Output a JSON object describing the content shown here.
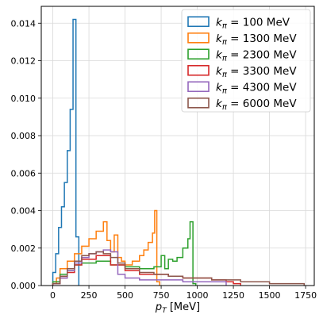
{
  "chart_data": {
    "type": "histogram-step",
    "xlabel": "p_T [MeV]",
    "ylabel": "",
    "xlim": [
      -80,
      1810
    ],
    "ylim": [
      0,
      0.0149
    ],
    "grid": true,
    "legend_position": "top-right",
    "x_ticks": [
      0,
      250,
      500,
      750,
      1000,
      1250,
      1500,
      1750
    ],
    "y_ticks": [
      0.0,
      0.002,
      0.004,
      0.006,
      0.008,
      0.01,
      0.012,
      0.014
    ],
    "y_tick_labels": [
      "0.000",
      "0.002",
      "0.004",
      "0.006",
      "0.008",
      "0.010",
      "0.012",
      "0.014"
    ],
    "series": [
      {
        "name": "k_π = 100 MeV",
        "color": "#1f77b4",
        "bins": [
          [
            0,
            20
          ],
          [
            20,
            40
          ],
          [
            40,
            60
          ],
          [
            60,
            80
          ],
          [
            80,
            100
          ],
          [
            100,
            120
          ],
          [
            120,
            140
          ],
          [
            140,
            160
          ],
          [
            160,
            180
          ]
        ],
        "values": [
          0.0007,
          0.0017,
          0.0031,
          0.0042,
          0.0055,
          0.0072,
          0.0094,
          0.0142,
          0.0026
        ]
      },
      {
        "name": "k_π = 1300 MeV",
        "color": "#ff7f0e",
        "bins": [
          [
            0,
            25
          ],
          [
            25,
            50
          ],
          [
            50,
            100
          ],
          [
            100,
            150
          ],
          [
            150,
            200
          ],
          [
            200,
            250
          ],
          [
            250,
            300
          ],
          [
            300,
            350
          ],
          [
            350,
            375
          ],
          [
            375,
            400
          ],
          [
            400,
            425
          ],
          [
            425,
            450
          ],
          [
            450,
            475
          ],
          [
            475,
            500
          ],
          [
            500,
            550
          ],
          [
            550,
            600
          ],
          [
            600,
            630
          ],
          [
            630,
            660
          ],
          [
            660,
            690
          ],
          [
            690,
            705
          ],
          [
            705,
            720
          ],
          [
            720,
            740
          ]
        ],
        "values": [
          0.0001,
          0.0004,
          0.0009,
          0.0013,
          0.0017,
          0.0021,
          0.0025,
          0.0029,
          0.0034,
          0.0024,
          0.0018,
          0.0027,
          0.0015,
          0.0013,
          0.0011,
          0.0013,
          0.0016,
          0.0019,
          0.0023,
          0.0028,
          0.004,
          0.0002
        ]
      },
      {
        "name": "k_π = 2300 MeV",
        "color": "#2ca02c",
        "bins": [
          [
            0,
            50
          ],
          [
            50,
            100
          ],
          [
            100,
            150
          ],
          [
            150,
            200
          ],
          [
            200,
            300
          ],
          [
            300,
            400
          ],
          [
            400,
            500
          ],
          [
            500,
            600
          ],
          [
            600,
            700
          ],
          [
            700,
            750
          ],
          [
            750,
            775
          ],
          [
            775,
            800
          ],
          [
            800,
            830
          ],
          [
            830,
            860
          ],
          [
            860,
            900
          ],
          [
            900,
            935
          ],
          [
            935,
            950
          ],
          [
            950,
            970
          ],
          [
            970,
            990
          ]
        ],
        "values": [
          0.0002,
          0.0006,
          0.0008,
          0.0011,
          0.0012,
          0.0013,
          0.0011,
          0.001,
          0.0009,
          0.001,
          0.0016,
          0.0009,
          0.0014,
          0.0013,
          0.0015,
          0.002,
          0.0025,
          0.0034,
          0.0001
        ]
      },
      {
        "name": "k_π = 3300 MeV",
        "color": "#d62728",
        "bins": [
          [
            0,
            50
          ],
          [
            50,
            100
          ],
          [
            100,
            150
          ],
          [
            150,
            200
          ],
          [
            200,
            300
          ],
          [
            300,
            400
          ],
          [
            400,
            500
          ],
          [
            500,
            600
          ],
          [
            600,
            700
          ],
          [
            700,
            800
          ],
          [
            800,
            900
          ],
          [
            900,
            1000
          ],
          [
            1000,
            1100
          ],
          [
            1100,
            1200
          ],
          [
            1200,
            1250
          ],
          [
            1250,
            1300
          ]
        ],
        "values": [
          0.0001,
          0.0004,
          0.0007,
          0.0011,
          0.0014,
          0.0016,
          0.0011,
          0.0008,
          0.0006,
          0.0006,
          0.0005,
          0.0004,
          0.0004,
          0.0003,
          0.0002,
          0.0001
        ]
      },
      {
        "name": "k_π = 4300 MeV",
        "color": "#9467bd",
        "bins": [
          [
            0,
            50
          ],
          [
            50,
            100
          ],
          [
            100,
            150
          ],
          [
            150,
            200
          ],
          [
            200,
            250
          ],
          [
            250,
            300
          ],
          [
            300,
            350
          ],
          [
            350,
            400
          ],
          [
            400,
            450
          ],
          [
            450,
            500
          ],
          [
            500,
            600
          ],
          [
            600,
            700
          ],
          [
            700,
            800
          ],
          [
            800,
            900
          ],
          [
            900,
            1000
          ],
          [
            1000,
            1100
          ],
          [
            1100,
            1200
          ]
        ],
        "values": [
          0.0001,
          0.0004,
          0.0008,
          0.0012,
          0.0015,
          0.0017,
          0.0018,
          0.0019,
          0.0018,
          0.0006,
          0.0004,
          0.0003,
          0.0003,
          0.0003,
          0.0002,
          0.0002,
          0.0002
        ]
      },
      {
        "name": "k_π = 6000 MeV",
        "color": "#8c564b",
        "bins": [
          [
            0,
            50
          ],
          [
            50,
            100
          ],
          [
            100,
            150
          ],
          [
            150,
            200
          ],
          [
            200,
            250
          ],
          [
            250,
            300
          ],
          [
            300,
            350
          ],
          [
            350,
            400
          ],
          [
            400,
            450
          ],
          [
            450,
            500
          ],
          [
            500,
            600
          ],
          [
            600,
            700
          ],
          [
            700,
            800
          ],
          [
            800,
            900
          ],
          [
            900,
            1000
          ],
          [
            1000,
            1100
          ],
          [
            1100,
            1200
          ],
          [
            1200,
            1300
          ],
          [
            1300,
            1400
          ],
          [
            1400,
            1500
          ],
          [
            1500,
            1600
          ],
          [
            1600,
            1700
          ],
          [
            1700,
            1740
          ]
        ],
        "values": [
          0.0001,
          0.0005,
          0.0009,
          0.0013,
          0.0016,
          0.0017,
          0.0018,
          0.0017,
          0.0015,
          0.0012,
          0.0009,
          0.0007,
          0.0006,
          0.0005,
          0.0004,
          0.0004,
          0.0003,
          0.0003,
          0.0002,
          0.0002,
          0.0001,
          0.0001,
          0.0001
        ]
      }
    ]
  }
}
